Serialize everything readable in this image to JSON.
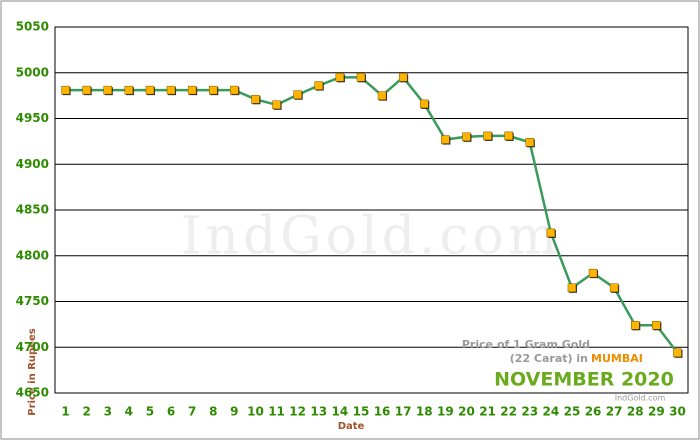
{
  "chart_data": {
    "type": "line",
    "x_label": "Date",
    "y_label": "Price in Rupees",
    "watermark": "IndGold.com",
    "annotation": {
      "line1": "Price of 1 Gram Gold",
      "line2": "(22 Carat) in",
      "city": "MUMBAI",
      "period": "NOVEMBER 2020",
      "source": "IndGold.com"
    },
    "categories": [
      1,
      2,
      3,
      4,
      5,
      6,
      7,
      8,
      9,
      10,
      11,
      12,
      13,
      14,
      15,
      16,
      17,
      18,
      19,
      20,
      21,
      22,
      23,
      24,
      25,
      26,
      27,
      28,
      29,
      30
    ],
    "series": [
      {
        "color": "#3a9a5a",
        "marker_color": "#ffb400",
        "values": [
          4981,
          4981,
          4981,
          4981,
          4981,
          4981,
          4981,
          4981,
          4981,
          4971,
          4965,
          4976,
          4986,
          4995,
          4995,
          4975,
          4995,
          4966,
          4927,
          4930,
          4931,
          4931,
          4924,
          4825,
          4765,
          4781,
          4765,
          4724,
          4724,
          4694
        ]
      }
    ],
    "ylim": [
      4650,
      5050
    ],
    "yticks": [
      4650,
      4700,
      4750,
      4800,
      4850,
      4900,
      4950,
      5000,
      5050
    ],
    "grid": true
  }
}
